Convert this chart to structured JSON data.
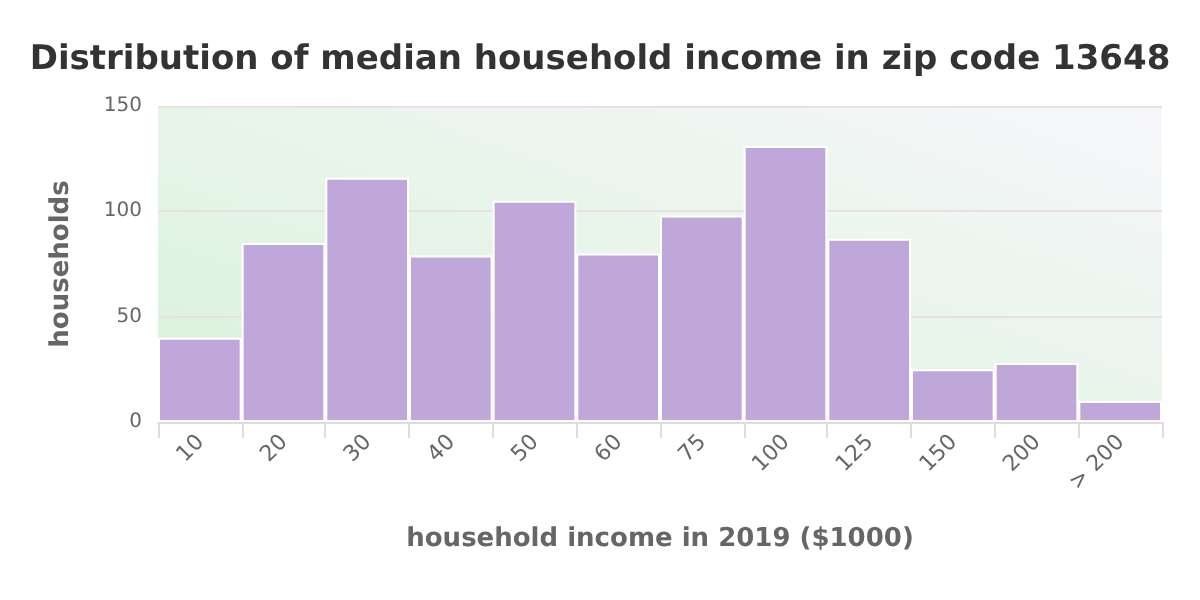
{
  "chart_data": {
    "type": "bar",
    "title": "Distribution of median household income in zip code 13648",
    "xlabel": "household income in 2019 ($1000)",
    "ylabel": "households",
    "categories": [
      "10",
      "20",
      "30",
      "40",
      "50",
      "60",
      "75",
      "100",
      "125",
      "150",
      "200",
      "> 200"
    ],
    "values": [
      40,
      85,
      116,
      79,
      105,
      80,
      98,
      131,
      87,
      25,
      28,
      10
    ],
    "color": "#bfa8d9",
    "ylim": [
      0,
      150
    ],
    "yticks": [
      0,
      50,
      100,
      150
    ],
    "grid": "y"
  }
}
